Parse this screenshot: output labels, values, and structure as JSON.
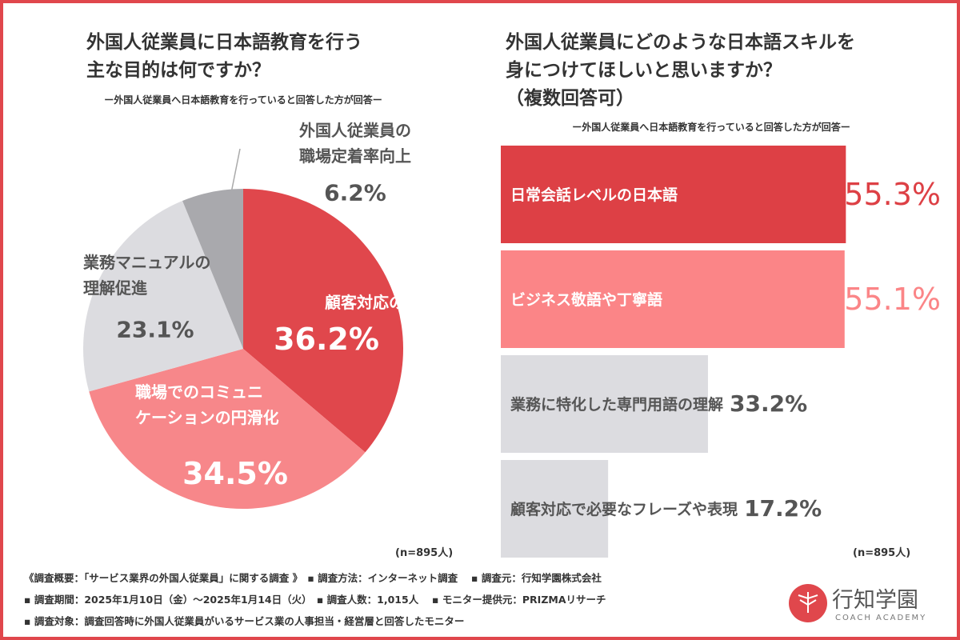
{
  "chart_data": [
    {
      "type": "pie",
      "title": "外国人従業員に日本語教育を行う\n主な目的は何ですか？",
      "subtitle": "ー外国人従業員へ日本語教育を行っていると回答した方が回答ー",
      "categories": [
        "顧客対応の向上",
        "職場でのコミュニ\nケーションの円滑化",
        "業務マニュアルの\n理解促進",
        "外国人従業員の\n職場定着率向上"
      ],
      "values": [
        36.2,
        34.5,
        23.1,
        6.2
      ],
      "value_labels": [
        "36.2%",
        "34.5%",
        "23.1%",
        "6.2%"
      ],
      "colors": [
        "#e0474c",
        "#f7878a",
        "#dcdce0",
        "#a9a9ad"
      ],
      "note": "(n=895人)"
    },
    {
      "type": "bar",
      "orientation": "horizontal",
      "title": "外国人従業員にどのような日本語スキルを\n身につけてほしいと思いますか？\n（複数回答可）",
      "subtitle": "ー外国人従業員へ日本語教育を行っていると回答した方が回答ー",
      "categories": [
        "日常会話レベルの日本語",
        "ビジネス敬語や丁寧語",
        "業務に特化した専門用語の理解",
        "顧客対応で必要なフレーズや表現"
      ],
      "values": [
        55.3,
        55.1,
        33.2,
        17.2
      ],
      "value_labels": [
        "55.3%",
        "55.1%",
        "33.2%",
        "17.2%"
      ],
      "colors": [
        "#dd4045",
        "#fb8587",
        "#dcdce0",
        "#dcdce0"
      ],
      "note": "(n=895人)"
    }
  ],
  "footer": {
    "lines": [
      "《調査概要：「サービス業界の外国人従業員」に関する調査 》　▪ 調査方法：インターネット調査　 ▪ 調査元：行知学園株式会社",
      "▪ 調査期間：2025年1月10日（金）～2025年1月14日（火）　▪ 調査人数：1,015人　 ▪ モニター提供元：PRIZMAリサーチ",
      "▪ 調査対象：調査回答時に外国人従業員がいるサービス業の人事担当・経営層と回答したモニター"
    ]
  },
  "logo": {
    "name": "行知学園",
    "tagline": "COACH ACADEMY"
  }
}
